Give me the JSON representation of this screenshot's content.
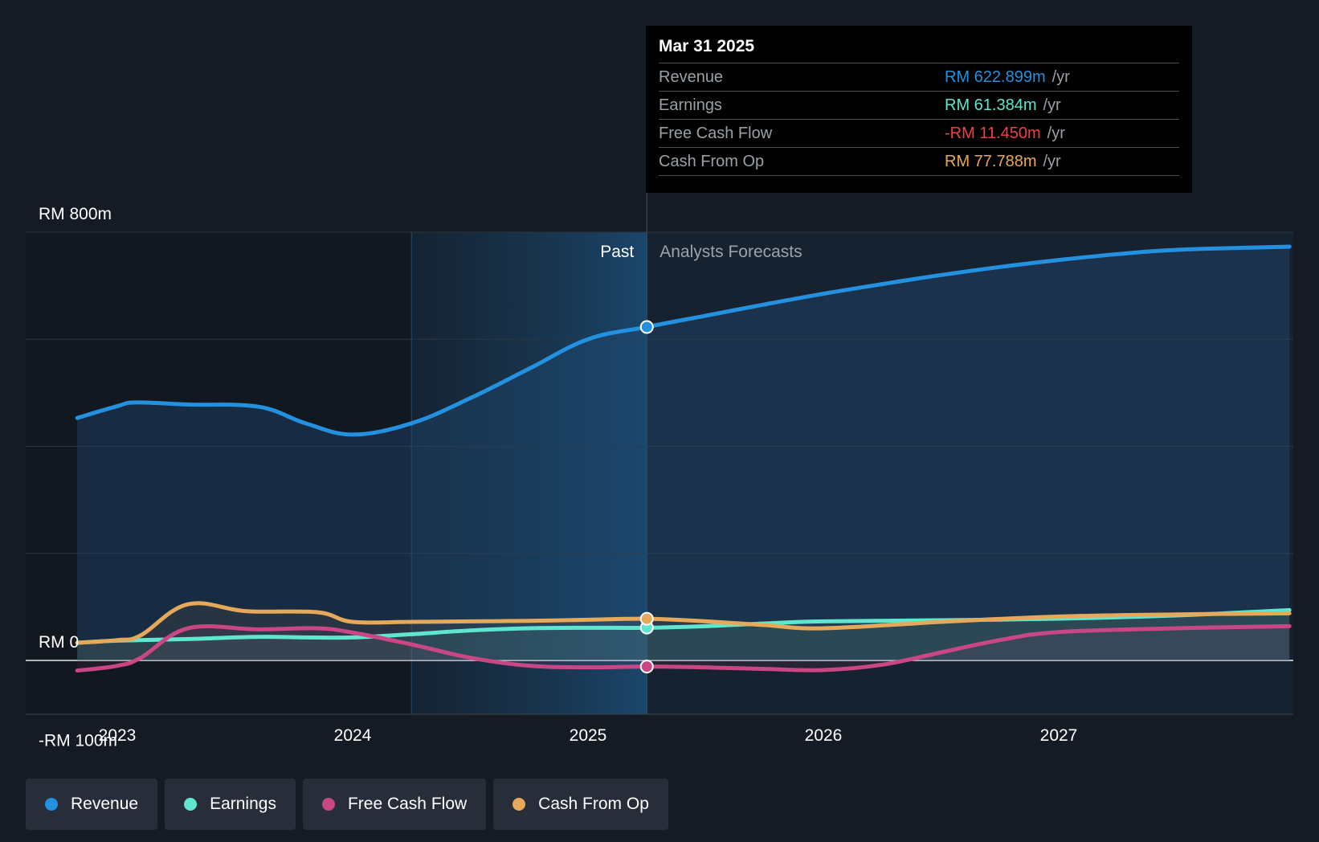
{
  "colors": {
    "revenue": "#2490e0",
    "earnings": "#5ee6cf",
    "free_cash_flow": "#c84784",
    "cash_from_op": "#e6a95a",
    "negative": "#f04040"
  },
  "tooltip": {
    "date": "Mar 31 2025",
    "rows": [
      {
        "label": "Revenue",
        "value": "RM 622.899m",
        "unit": "/yr"
      },
      {
        "label": "Earnings",
        "value": "RM 61.384m",
        "unit": "/yr"
      },
      {
        "label": "Free Cash Flow",
        "value": "-RM 11.450m",
        "unit": "/yr"
      },
      {
        "label": "Cash From Op",
        "value": "RM 77.788m",
        "unit": "/yr"
      }
    ]
  },
  "legend": [
    {
      "label": "Revenue",
      "icon": "revenue-dot-icon"
    },
    {
      "label": "Earnings",
      "icon": "earnings-dot-icon"
    },
    {
      "label": "Free Cash Flow",
      "icon": "free-cash-flow-dot-icon"
    },
    {
      "label": "Cash From Op",
      "icon": "cash-from-op-dot-icon"
    }
  ],
  "chart_data": {
    "type": "line",
    "title": "",
    "xlabel": "",
    "ylabel": "",
    "x_range": [
      2022.55,
      2027.98
    ],
    "ylim": [
      -100,
      800
    ],
    "y_tick_labels": [
      {
        "value": 800,
        "label": "RM 800m"
      },
      {
        "value": 0,
        "label": "RM 0"
      },
      {
        "value": -100,
        "label": "-RM 100m"
      }
    ],
    "gridlines": [
      800,
      600,
      400,
      200,
      0
    ],
    "x_ticks": [
      {
        "value": 2023,
        "label": "2023"
      },
      {
        "value": 2024,
        "label": "2024"
      },
      {
        "value": 2025,
        "label": "2025"
      },
      {
        "value": 2026,
        "label": "2026"
      },
      {
        "value": 2027,
        "label": "2027"
      }
    ],
    "past_label": "Past",
    "forecast_label": "Analysts Forecasts",
    "highlight_band_start": 2024.25,
    "current_x": 2025.25,
    "series": [
      {
        "name": "Revenue",
        "color_key": "revenue",
        "x": [
          2022.83,
          2023.0,
          2023.08,
          2023.3,
          2023.6,
          2023.8,
          2024.0,
          2024.25,
          2024.5,
          2024.75,
          2025.0,
          2025.25,
          2025.5,
          2025.75,
          2026.0,
          2026.25,
          2026.5,
          2026.75,
          2027.0,
          2027.25,
          2027.5,
          2027.98
        ],
        "values": [
          453,
          475,
          482,
          478,
          474,
          443,
          422,
          443,
          490,
          545,
          600,
          623,
          644,
          665,
          685,
          703,
          720,
          735,
          748,
          759,
          767,
          773
        ]
      },
      {
        "name": "Earnings",
        "color_key": "earnings",
        "x": [
          2022.83,
          2023.0,
          2023.3,
          2023.6,
          2023.8,
          2024.0,
          2024.25,
          2024.5,
          2024.75,
          2025.0,
          2025.25,
          2025.5,
          2025.75,
          2026.0,
          2026.5,
          2027.0,
          2027.5,
          2027.98
        ],
        "values": [
          33,
          37,
          40,
          44,
          43,
          43,
          49,
          56,
          60,
          61,
          61,
          64,
          69,
          73,
          75,
          78,
          84,
          94
        ]
      },
      {
        "name": "Free Cash Flow",
        "color_key": "free_cash_flow",
        "x": [
          2022.83,
          2023.0,
          2023.1,
          2023.3,
          2023.6,
          2023.85,
          2024.0,
          2024.25,
          2024.5,
          2024.75,
          2025.0,
          2025.25,
          2025.5,
          2025.75,
          2026.0,
          2026.25,
          2026.5,
          2026.75,
          2027.0,
          2027.5,
          2027.98
        ],
        "values": [
          -19,
          -10,
          5,
          60,
          58,
          60,
          52,
          30,
          5,
          -10,
          -13,
          -11.45,
          -13,
          -16,
          -18,
          -8,
          15,
          38,
          53,
          60,
          64
        ]
      },
      {
        "name": "Cash From Op",
        "color_key": "cash_from_op",
        "x": [
          2022.83,
          2023.0,
          2023.1,
          2023.3,
          2023.55,
          2023.85,
          2024.0,
          2024.25,
          2024.5,
          2024.75,
          2025.0,
          2025.25,
          2025.5,
          2025.75,
          2026.0,
          2026.5,
          2027.0,
          2027.5,
          2027.98
        ],
        "values": [
          33,
          38,
          47,
          105,
          92,
          90,
          72,
          72,
          73,
          74,
          76,
          77.8,
          73,
          66,
          60,
          72,
          82,
          86,
          88
        ]
      }
    ],
    "highlight_points": [
      {
        "series": "Revenue",
        "x": 2025.25,
        "value": 622.899
      },
      {
        "series": "Earnings",
        "x": 2025.25,
        "value": 61.384
      },
      {
        "series": "Free Cash Flow",
        "x": 2025.25,
        "value": -11.45
      },
      {
        "series": "Cash From Op",
        "x": 2025.25,
        "value": 77.788
      }
    ]
  }
}
